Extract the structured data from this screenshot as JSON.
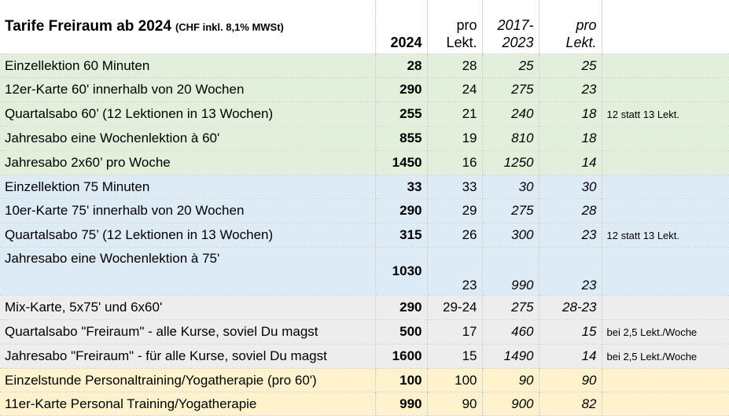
{
  "header": {
    "title": "Tarife Freiraum ab 2024",
    "subtitle": "(CHF inkl. 8,1% MWSt)",
    "col_2024": "2024",
    "col_pro1": "pro",
    "col_lekt1": "Lekt.",
    "col_old1": "2017-",
    "col_old2": "2023",
    "col_pro2": "pro",
    "col_lekt2": "Lekt."
  },
  "rows": [
    {
      "label": "Einzellektion 60 Minuten",
      "p2024": "28",
      "pro": "28",
      "old": "25",
      "oldpro": "25",
      "note": ""
    },
    {
      "label": "12er-Karte 60' innerhalb von 20 Wochen",
      "p2024": "290",
      "pro": "24",
      "old": "275",
      "oldpro": "23",
      "note": ""
    },
    {
      "label": "Quartalsabo 60’ (12 Lektionen in 13 Wochen)",
      "p2024": "255",
      "pro": "21",
      "old": "240",
      "oldpro": "18",
      "note": "12 statt 13 Lekt."
    },
    {
      "label": "Jahresabo eine Wochenlektion à 60'",
      "p2024": "855",
      "pro": "19",
      "old": "810",
      "oldpro": "18",
      "note": ""
    },
    {
      "label": "Jahresabo 2x60’ pro Woche",
      "p2024": "1450",
      "pro": "16",
      "old": "1250",
      "oldpro": "14",
      "note": ""
    },
    {
      "label": "Einzellektion 75 Minuten",
      "p2024": "33",
      "pro": "33",
      "old": "30",
      "oldpro": "30",
      "note": ""
    },
    {
      "label": "10er-Karte 75' innerhalb von 20 Wochen",
      "p2024": "290",
      "pro": "29",
      "old": "275",
      "oldpro": "28",
      "note": ""
    },
    {
      "label": "Quartalsabo 75’ (12 Lektionen in 13 Wochen)",
      "p2024": "315",
      "pro": "26",
      "old": "300",
      "oldpro": "23",
      "note": "12 statt 13 Lekt."
    },
    {
      "label": "Jahresabo eine Wochenlektion à 75'",
      "p2024": "1030",
      "pro": "23",
      "old": "990",
      "oldpro": "23",
      "note": ""
    },
    {
      "label": "Mix-Karte, 5x75' und 6x60'",
      "p2024": "290",
      "pro": "29-24",
      "old": "275",
      "oldpro": "28-23",
      "note": ""
    },
    {
      "label": "Quartalsabo \"Freiraum\" - alle Kurse, soviel Du magst",
      "p2024": "500",
      "pro": "17",
      "old": "460",
      "oldpro": "15",
      "note": "bei 2,5 Lekt./Woche"
    },
    {
      "label": "Jahresabo \"Freiraum\" - für alle Kurse, soviel Du magst",
      "p2024": "1600",
      "pro": "15",
      "old": "1490",
      "oldpro": "14",
      "note": "bei 2,5 Lekt./Woche"
    },
    {
      "label": "Einzelstunde Personaltraining/Yogatherapie (pro 60')",
      "p2024": "100",
      "pro": "100",
      "old": "90",
      "oldpro": "90",
      "note": ""
    },
    {
      "label": "11er-Karte Personal Training/Yogatherapie",
      "p2024": "990",
      "pro": "90",
      "old": "900",
      "oldpro": "82",
      "note": ""
    }
  ],
  "colors": {
    "green": "#e2efda",
    "blue": "#ddebf7",
    "gray": "#ededed",
    "yellow": "#fff2cc"
  }
}
